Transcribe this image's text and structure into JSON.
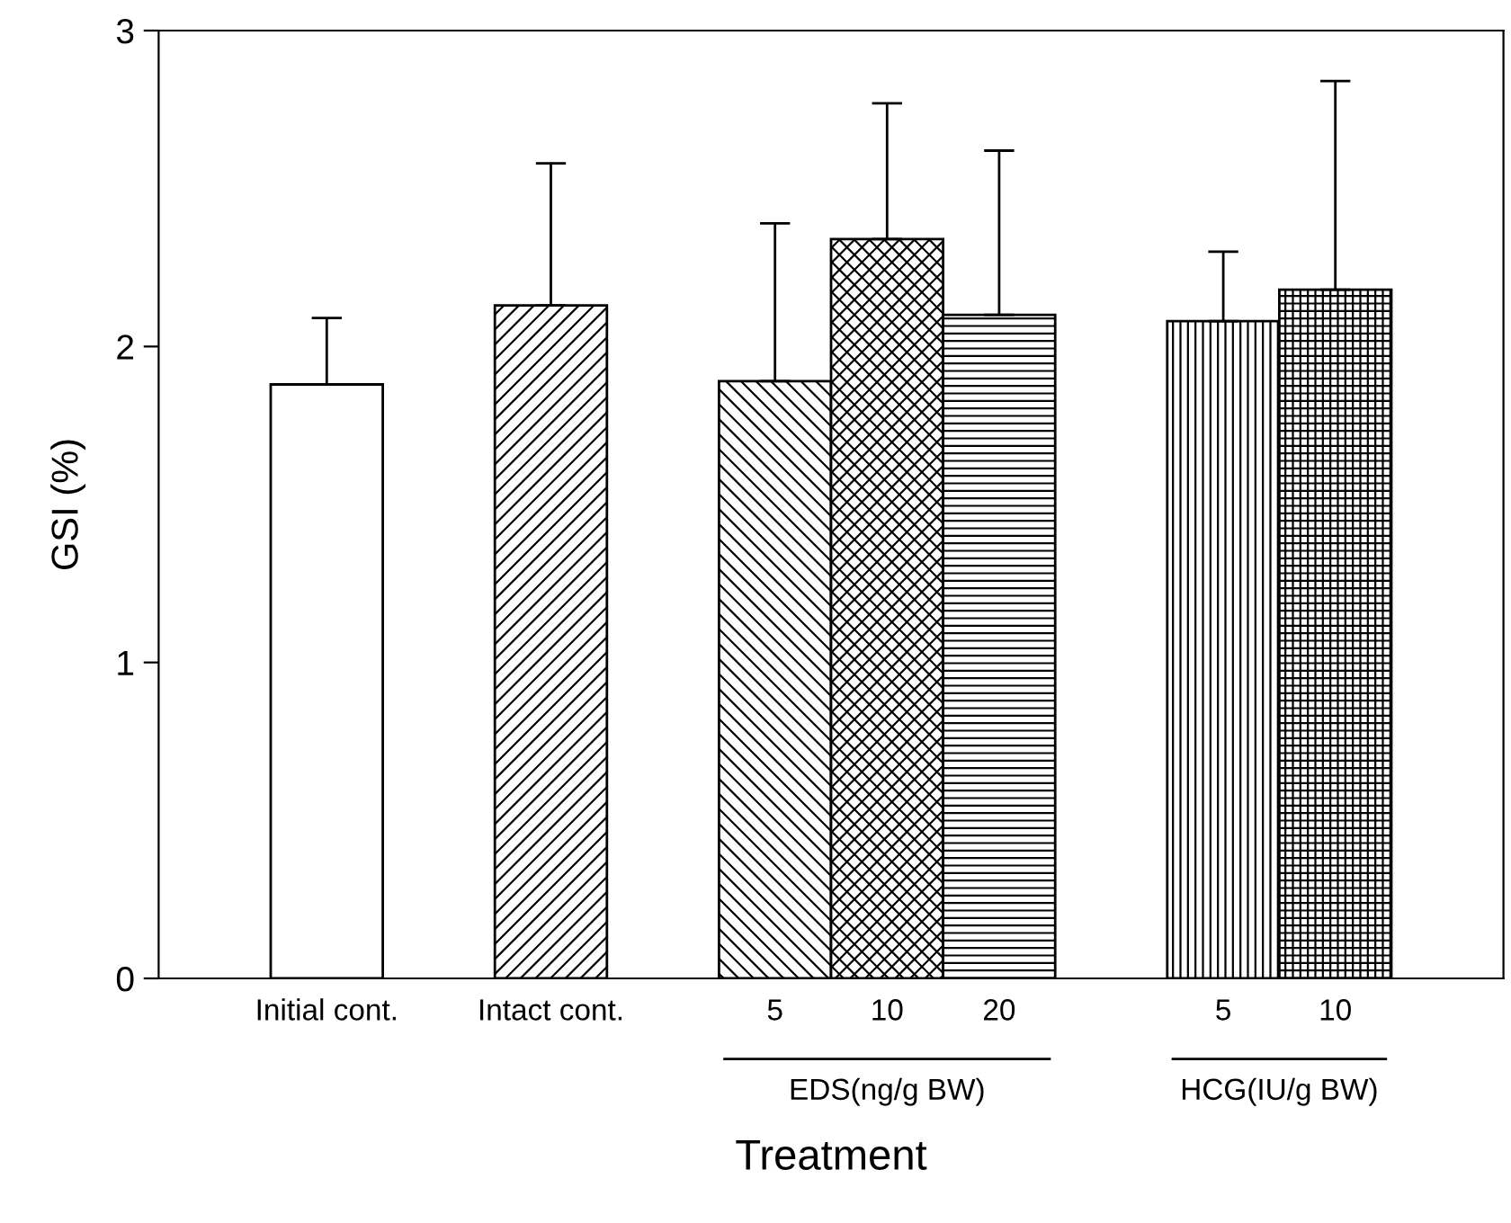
{
  "chart_data": {
    "type": "bar",
    "xlabel": "Treatment",
    "ylabel": "GSI (%)",
    "categories": [
      null,
      "Initial cont.",
      null,
      "Intact cont.",
      null,
      "5",
      "10",
      "20",
      null,
      "5",
      "10",
      null
    ],
    "values": [
      null,
      1.88,
      null,
      2.13,
      null,
      1.89,
      2.34,
      2.1,
      null,
      2.08,
      2.18,
      null
    ],
    "errors": [
      null,
      [
        1.88,
        2.09
      ],
      null,
      [
        2.13,
        2.58
      ],
      null,
      [
        1.89,
        2.39
      ],
      [
        2.34,
        2.77
      ],
      [
        2.1,
        2.62
      ],
      null,
      [
        2.08,
        2.3
      ],
      [
        2.18,
        2.84
      ],
      null
    ],
    "colors": [
      null,
      "#ffffff",
      null,
      "#000000",
      null,
      "#000000",
      "#000000",
      "#000000",
      null,
      "#000000",
      "#000000",
      null
    ],
    "ylim": [
      0,
      3
    ],
    "yticks": [
      0,
      1,
      2,
      3
    ],
    "grid": false,
    "legend": false,
    "annotations": [
      "EDS(ng/g BW)",
      "HCG(IU/g BW)"
    ]
  }
}
